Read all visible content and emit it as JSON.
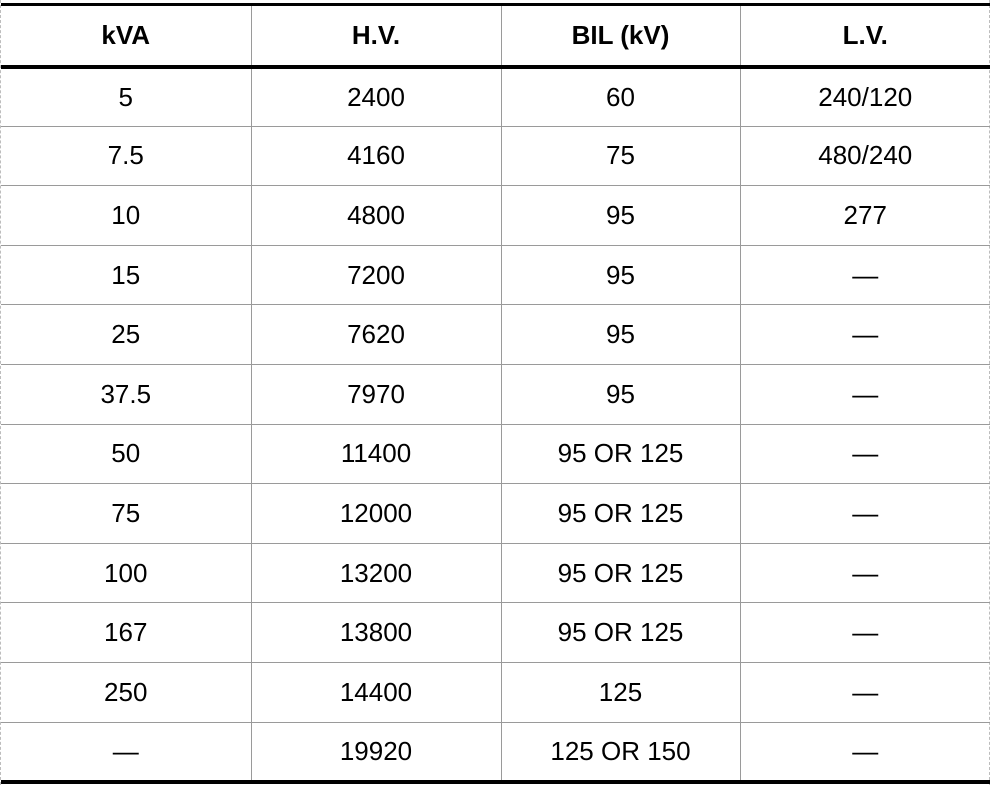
{
  "table": {
    "headers": [
      "kVA",
      "H.V.",
      "BIL (kV)",
      "L.V."
    ],
    "rows": [
      [
        "5",
        "2400",
        "60",
        "240/120"
      ],
      [
        "7.5",
        "4160",
        "75",
        "480/240"
      ],
      [
        "10",
        "4800",
        "95",
        "277"
      ],
      [
        "15",
        "7200",
        "95",
        "—"
      ],
      [
        "25",
        "7620",
        "95",
        "—"
      ],
      [
        "37.5",
        "7970",
        "95",
        "—"
      ],
      [
        "50",
        "11400",
        "95 OR 125",
        "—"
      ],
      [
        "75",
        "12000",
        "95 OR 125",
        "—"
      ],
      [
        "100",
        "13200",
        "95 OR 125",
        "—"
      ],
      [
        "167",
        "13800",
        "95 OR 125",
        "—"
      ],
      [
        "250",
        "14400",
        "125",
        "—"
      ],
      [
        "—",
        "19920",
        "125 OR 150",
        "—"
      ]
    ]
  }
}
